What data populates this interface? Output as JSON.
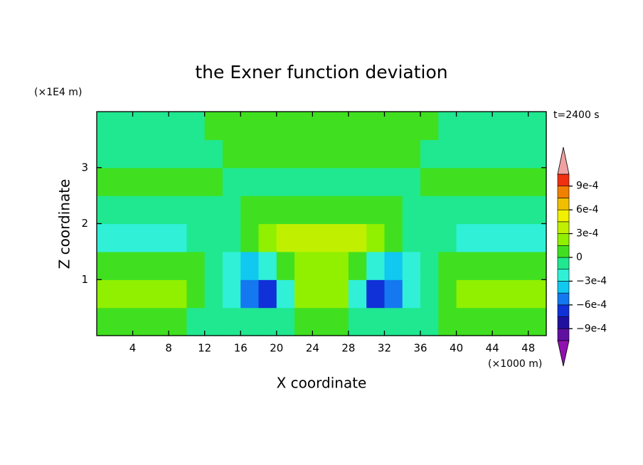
{
  "chart_data": {
    "type": "contour",
    "title": "the Exner function deviation",
    "xlabel": "X coordinate",
    "ylabel": "Z coordinate",
    "x_unit": "(×1000 m)",
    "y_unit": "(×1E4 m)",
    "annotation": "t=2400 s",
    "xlim": [
      0,
      50
    ],
    "ylim": [
      0,
      4
    ],
    "xticks": [
      4,
      8,
      12,
      16,
      20,
      24,
      28,
      32,
      36,
      40,
      44,
      48
    ],
    "yticks": [
      1,
      2,
      3
    ],
    "x": [
      1,
      3,
      5,
      7,
      9,
      11,
      13,
      15,
      17,
      19,
      21,
      23,
      25,
      27,
      29,
      31,
      33,
      35,
      37,
      39,
      41,
      43,
      45,
      47,
      49
    ],
    "y": [
      0.25,
      0.75,
      1.25,
      1.75,
      2.25,
      2.75,
      3.25,
      3.75
    ],
    "z": [
      [
        5e-05,
        5e-05,
        5e-05,
        5e-05,
        5e-05,
        -5e-05,
        -5e-05,
        -5e-05,
        -5e-05,
        -5e-05,
        -5e-05,
        5e-05,
        5e-05,
        5e-05,
        -5e-05,
        -5e-05,
        -5e-05,
        -5e-05,
        -5e-05,
        5e-05,
        5e-05,
        5e-05,
        5e-05,
        5e-05,
        5e-05
      ],
      [
        0.0002,
        0.0002,
        0.0002,
        0.0002,
        0.0002,
        5e-05,
        -5e-05,
        -0.0002,
        -0.0005,
        -0.0007,
        -0.0002,
        0.0002,
        0.0002,
        0.0002,
        -0.0002,
        -0.0007,
        -0.0005,
        -0.0002,
        -5e-05,
        5e-05,
        0.0002,
        0.0002,
        0.0002,
        0.0002,
        0.0002
      ],
      [
        5e-05,
        5e-05,
        5e-05,
        5e-05,
        5e-05,
        5e-05,
        -5e-05,
        -0.0002,
        -0.00035,
        -0.0002,
        5e-05,
        0.0002,
        0.0002,
        0.0002,
        5e-05,
        -0.0002,
        -0.00035,
        -0.0002,
        -5e-05,
        5e-05,
        5e-05,
        5e-05,
        5e-05,
        5e-05,
        5e-05
      ],
      [
        -0.0002,
        -0.0002,
        -0.0002,
        -0.0002,
        -0.0002,
        -5e-05,
        -5e-05,
        -5e-05,
        5e-05,
        0.0002,
        0.00035,
        0.00035,
        0.00035,
        0.00035,
        0.00035,
        0.0002,
        5e-05,
        -5e-05,
        -5e-05,
        -5e-05,
        -0.0002,
        -0.0002,
        -0.0002,
        -0.0002,
        -0.0002
      ],
      [
        -5e-05,
        -5e-05,
        -5e-05,
        -5e-05,
        -5e-05,
        -5e-05,
        -5e-05,
        -5e-05,
        5e-05,
        5e-05,
        5e-05,
        5e-05,
        5e-05,
        5e-05,
        5e-05,
        5e-05,
        5e-05,
        -5e-05,
        -5e-05,
        -5e-05,
        -5e-05,
        -5e-05,
        -5e-05,
        -5e-05,
        -5e-05
      ],
      [
        5e-05,
        5e-05,
        5e-05,
        5e-05,
        5e-05,
        5e-05,
        5e-05,
        -5e-05,
        -5e-05,
        -5e-05,
        -5e-05,
        -5e-05,
        -5e-05,
        -5e-05,
        -5e-05,
        -5e-05,
        -5e-05,
        -5e-05,
        5e-05,
        5e-05,
        5e-05,
        5e-05,
        5e-05,
        5e-05,
        5e-05
      ],
      [
        -5e-05,
        -5e-05,
        -5e-05,
        -5e-05,
        -5e-05,
        -5e-05,
        -5e-05,
        5e-05,
        5e-05,
        5e-05,
        5e-05,
        5e-05,
        5e-05,
        5e-05,
        5e-05,
        5e-05,
        5e-05,
        5e-05,
        -5e-05,
        -5e-05,
        -5e-05,
        -5e-05,
        -5e-05,
        -5e-05,
        -5e-05
      ],
      [
        -5e-05,
        -5e-05,
        -5e-05,
        -5e-05,
        -5e-05,
        -5e-05,
        5e-05,
        5e-05,
        5e-05,
        5e-05,
        5e-05,
        5e-05,
        5e-05,
        5e-05,
        5e-05,
        5e-05,
        5e-05,
        5e-05,
        5e-05,
        -5e-05,
        -5e-05,
        -5e-05,
        -5e-05,
        -5e-05,
        -5e-05
      ]
    ],
    "levels": [
      -0.00105,
      -0.0009,
      -0.00075,
      -0.0006,
      -0.00045,
      -0.0003,
      -0.00015,
      0,
      0.00015,
      0.0003,
      0.00045,
      0.0006,
      0.00075,
      0.0009,
      0.00105
    ],
    "colors": [
      "#6010a0",
      "#2010a0",
      "#1030d8",
      "#1478f0",
      "#10c8f0",
      "#30f0d8",
      "#20e890",
      "#40e020",
      "#90f000",
      "#c0f000",
      "#f0f000",
      "#f0c000",
      "#f08000",
      "#f03010"
    ],
    "under_color": "#9010b0",
    "over_color": "#f0a0a0",
    "colorbar_ticks": [
      {
        "value": 0.0009,
        "label": "9e-4"
      },
      {
        "value": 0.0006,
        "label": "6e-4"
      },
      {
        "value": 0.0003,
        "label": "3e-4"
      },
      0,
      {
        "value": -0.0003,
        "label": "−3e-4"
      },
      {
        "value": -0.0006,
        "label": "−6e-4"
      },
      {
        "value": -0.0009,
        "label": "−9e-4"
      }
    ]
  }
}
